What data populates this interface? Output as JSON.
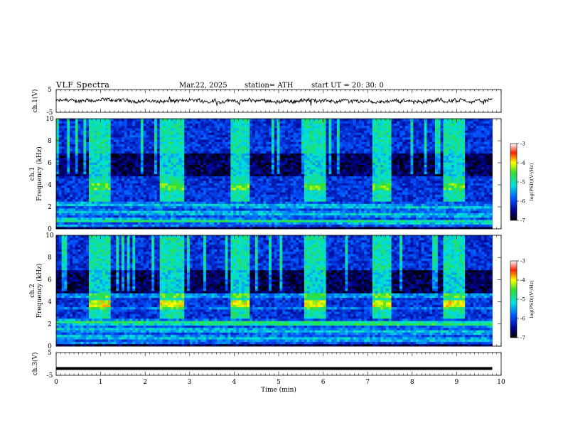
{
  "header": {
    "title": "VLF  Spectra",
    "date": "Mar.22, 2025",
    "station": "station= ATH",
    "start_time": "start  UT  =   20: 30: 0"
  },
  "chart_data": [
    {
      "type": "line",
      "title": "",
      "ylabel": "ch.1(V)",
      "xlim": [
        0,
        10
      ],
      "ylim": [
        -5,
        5
      ],
      "yticks": [
        "5",
        "-5"
      ],
      "signal_level": 0,
      "data_end_min": 9.8
    },
    {
      "type": "heatmap",
      "ylabel_lines": [
        "ch.1",
        "Frequency (kHz)"
      ],
      "xlim": [
        0,
        10
      ],
      "ylim": [
        0,
        10
      ],
      "yticks": [
        "0",
        "2",
        "4",
        "6",
        "8",
        "10"
      ],
      "colorbar": {
        "label": "log(PSD)(V²/Hz)",
        "range": [
          -7,
          -3
        ],
        "ticks": [
          "-3",
          "-4",
          "-5",
          "-6",
          "-7"
        ]
      },
      "transmitter_on_intervals_min": [
        [
          0.75,
          1.25
        ],
        [
          2.3,
          2.85
        ],
        [
          3.9,
          4.35
        ],
        [
          5.55,
          6.05
        ],
        [
          7.1,
          7.55
        ],
        [
          8.7,
          9.2
        ]
      ],
      "data_end_min": 9.8
    },
    {
      "type": "heatmap",
      "ylabel_lines": [
        "ch.2",
        "Frequency (kHz)"
      ],
      "xlim": [
        0,
        10
      ],
      "ylim": [
        0,
        10
      ],
      "yticks": [
        "0",
        "2",
        "4",
        "6",
        "8",
        "10"
      ],
      "colorbar": {
        "label": "log(PSD)(V²/Hz)",
        "range": [
          -7,
          -3
        ],
        "ticks": [
          "-3",
          "-4",
          "-5",
          "-6",
          "-7"
        ]
      },
      "transmitter_on_intervals_min": [
        [
          0.75,
          1.25
        ],
        [
          2.3,
          2.85
        ],
        [
          3.9,
          4.35
        ],
        [
          5.55,
          6.05
        ],
        [
          7.1,
          7.55
        ],
        [
          8.7,
          9.2
        ]
      ],
      "data_end_min": 9.8
    },
    {
      "type": "line",
      "title": "",
      "ylabel": "ch.3(V)",
      "xlabel": "Time  (min)",
      "xlim": [
        0,
        10
      ],
      "ylim": [
        -5,
        5
      ],
      "xticks": [
        "0",
        "1",
        "2",
        "3",
        "4",
        "5",
        "6",
        "7",
        "8",
        "9",
        "10"
      ],
      "yticks": [
        "5",
        "-5"
      ],
      "signal_level": -2,
      "data_end_min": 9.8
    }
  ]
}
